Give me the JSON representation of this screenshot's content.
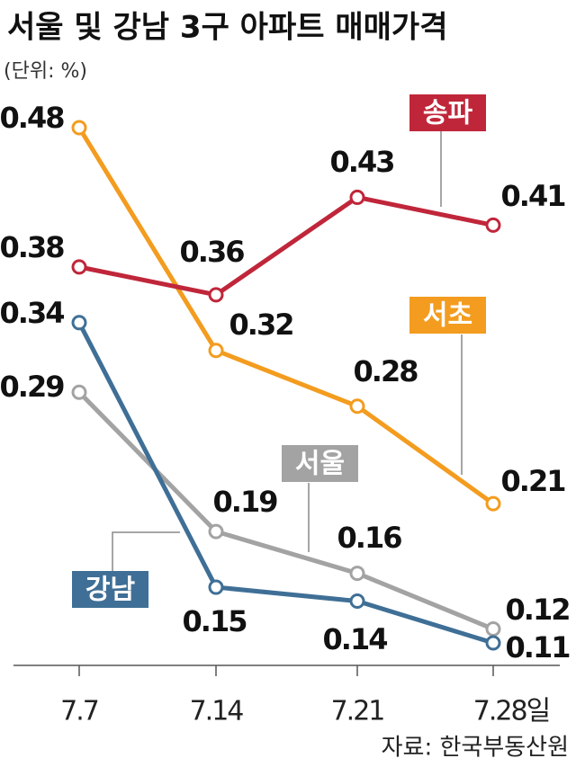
{
  "chart_data": {
    "type": "line",
    "title": "서울 및 강남 3구 아파트 매매가격",
    "subtitle": "(단위: %)",
    "source": "자료: 한국부동산원",
    "categories": [
      "7.7",
      "7.14",
      "7.21",
      "7.28일"
    ],
    "series": [
      {
        "name": "송파",
        "color": "#c0263a",
        "values": [
          0.38,
          0.36,
          0.43,
          0.41
        ]
      },
      {
        "name": "서초",
        "color": "#f39c1f",
        "values": [
          0.48,
          0.32,
          0.28,
          0.21
        ]
      },
      {
        "name": "서울",
        "color": "#a3a3a3",
        "values": [
          0.29,
          0.19,
          0.16,
          0.12
        ]
      },
      {
        "name": "강남",
        "color": "#3f6f96",
        "values": [
          0.34,
          0.15,
          0.14,
          0.11
        ]
      }
    ]
  }
}
